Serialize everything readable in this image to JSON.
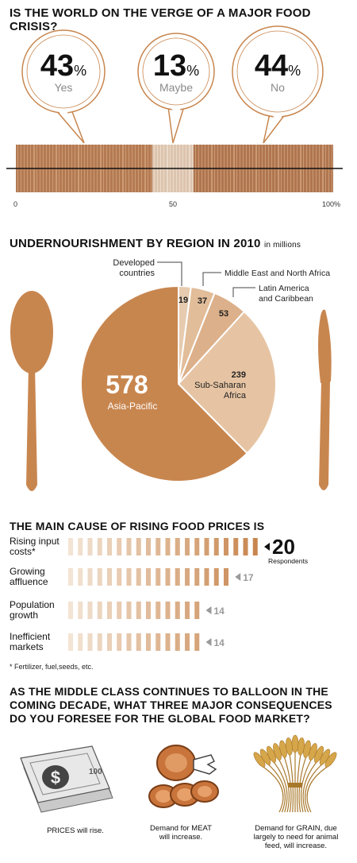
{
  "survey": {
    "title": "IS THE WORLD ON THE VERGE OF A MAJOR FOOD CRISIS?",
    "answers": [
      {
        "value": 43,
        "label": "Yes"
      },
      {
        "value": 13,
        "label": "Maybe"
      },
      {
        "value": 44,
        "label": "No"
      }
    ],
    "pct_sign": "%",
    "axis_ticks": [
      "0",
      "50",
      "100%"
    ]
  },
  "pie": {
    "title": "UNDERNOURISHMENT BY REGION IN 2010",
    "unit": "in millions"
  },
  "causes": {
    "title": "THE MAIN CAUSE OF RISING FOOD PRICES IS",
    "respondents_label": "Respondents",
    "footnote": "* Fertilizer, fuel,seeds, etc.",
    "lines": [
      [
        "Rising input",
        "costs*"
      ],
      [
        "Growing",
        "affluence"
      ],
      [
        "Population",
        "growth"
      ],
      [
        "Inefficient",
        "markets"
      ]
    ]
  },
  "consequences": {
    "title_lines": [
      "AS THE MIDDLE CLASS CONTINUES TO BALLOON IN THE",
      "COMING DECADE, WHAT THREE MAJOR CONSEQUENCES",
      "DO YOU FORESEE FOR THE GLOBAL FOOD MARKET?"
    ],
    "items": [
      {
        "icon": "money-stack-icon",
        "lines": [
          "PRICES will rise."
        ]
      },
      {
        "icon": "meat-icon",
        "lines": [
          "Demand for MEAT",
          "will increase."
        ]
      },
      {
        "icon": "wheat-icon",
        "lines": [
          "Demand for GRAIN, due",
          "largely to need for animal",
          "feed, will increase."
        ]
      }
    ]
  },
  "colors": {
    "brown": "#c8864f",
    "tan": "#d9a679",
    "light": "#e6c4a3",
    "pale": "#efd7bf",
    "grey": "#9a9a9a"
  },
  "chart_data": [
    {
      "type": "bar",
      "title": "IS THE WORLD ON THE VERGE OF A MAJOR FOOD CRISIS?",
      "categories": [
        "Yes",
        "Maybe",
        "No"
      ],
      "values": [
        43,
        13,
        44
      ],
      "xlim": [
        0,
        100
      ]
    },
    {
      "type": "pie",
      "title": "UNDERNOURISHMENT BY REGION IN 2010",
      "subtitle": "in millions",
      "categories": [
        "Developed countries",
        "Middle East and North Africa",
        "Latin America and Caribbean",
        "Sub-Saharan Africa",
        "Asia-Pacific"
      ],
      "values": [
        19,
        37,
        53,
        239,
        578
      ]
    },
    {
      "type": "bar",
      "title": "THE MAIN CAUSE OF RISING FOOD PRICES IS",
      "categories": [
        "Rising input costs*",
        "Growing affluence",
        "Population growth",
        "Inefficient markets"
      ],
      "values": [
        20,
        17,
        14,
        14
      ],
      "unit": "Respondents"
    }
  ]
}
